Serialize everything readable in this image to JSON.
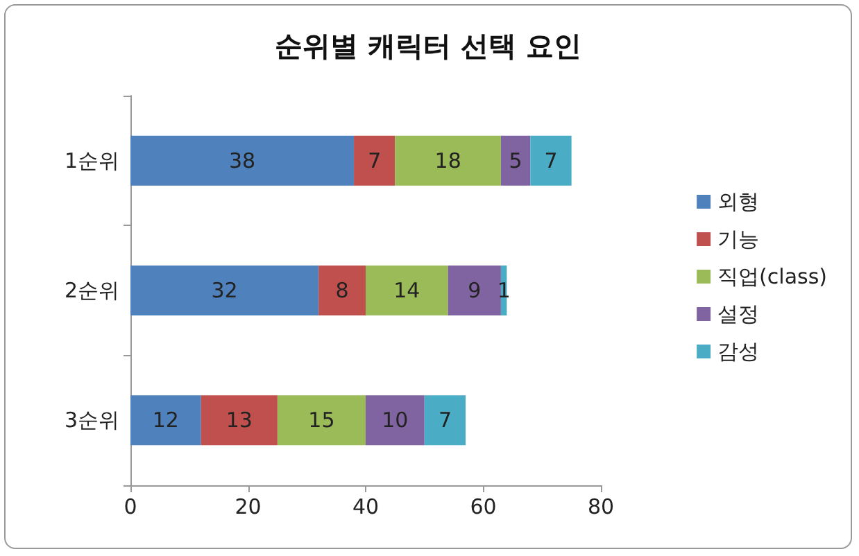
{
  "chart_data": {
    "type": "bar",
    "title": "순위별 캐릭터 선택 요인",
    "orientation": "horizontal",
    "stacked": true,
    "categories": [
      "1순위",
      "2순위",
      "3순위"
    ],
    "series": [
      {
        "name": "외형",
        "color": "#4f81bd",
        "values": [
          38,
          32,
          12
        ]
      },
      {
        "name": "기능",
        "color": "#c0504d",
        "values": [
          7,
          8,
          13
        ]
      },
      {
        "name": "직업(class)",
        "color": "#9bbb59",
        "values": [
          18,
          14,
          15
        ]
      },
      {
        "name": "설정",
        "color": "#8064a2",
        "values": [
          5,
          9,
          10
        ]
      },
      {
        "name": "감성",
        "color": "#4bacc6",
        "values": [
          7,
          1,
          7
        ]
      }
    ],
    "xlim": [
      0,
      80
    ],
    "xticks": [
      0,
      20,
      40,
      60,
      80
    ],
    "grid": false,
    "legend": "right",
    "data_labels": true
  }
}
